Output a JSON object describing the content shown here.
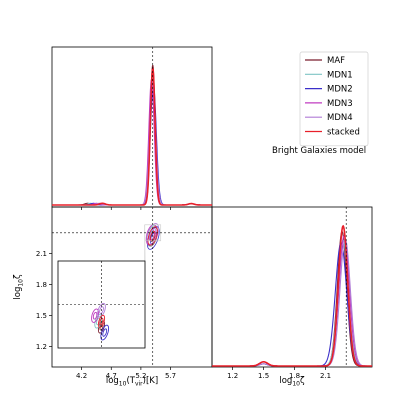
{
  "chart_data": {
    "type": "corner",
    "model_label": "Bright Galaxies model",
    "truth": {
      "log10_Tvir": 5.4,
      "log10_zeta": 2.3
    },
    "series": [
      {
        "name": "MAF",
        "color": "#7b1f2e",
        "mean": [
          5.4,
          2.26
        ],
        "sigma": [
          0.04,
          0.045
        ],
        "rho": 0.5,
        "peak_tvir": 1.0,
        "peak_zeta": 0.96
      },
      {
        "name": "MDN1",
        "color": "#7fc4c4",
        "mean": [
          5.39,
          2.27
        ],
        "sigma": [
          0.045,
          0.05
        ],
        "rho": 0.45,
        "peak_tvir": 0.92,
        "peak_zeta": 0.9
      },
      {
        "name": "MDN2",
        "color": "#3b2fc9",
        "mean": [
          5.41,
          2.25
        ],
        "sigma": [
          0.05,
          0.055
        ],
        "rho": 0.55,
        "peak_tvir": 0.86,
        "peak_zeta": 0.88
      },
      {
        "name": "MDN3",
        "color": "#c03cc0",
        "mean": [
          5.38,
          2.28
        ],
        "sigma": [
          0.045,
          0.05
        ],
        "rho": 0.4,
        "peak_tvir": 0.9,
        "peak_zeta": 0.93
      },
      {
        "name": "MDN4",
        "color": "#b07cd6",
        "mean": [
          5.4,
          2.29
        ],
        "sigma": [
          0.05,
          0.05
        ],
        "rho": 0.5,
        "peak_tvir": 0.88,
        "peak_zeta": 0.91
      },
      {
        "name": "stacked",
        "color": "#e8202a",
        "mean": [
          5.4,
          2.27
        ],
        "sigma": [
          0.04,
          0.045
        ],
        "rho": 0.5,
        "peak_tvir": 0.98,
        "peak_zeta": 1.0
      }
    ],
    "panels": {
      "tvir_marginal": {
        "xlim": [
          3.7,
          6.4
        ]
      },
      "joint": {
        "xlim": [
          3.7,
          6.4
        ],
        "ylim": [
          1.0,
          2.55
        ],
        "xticks": [
          "4.2",
          "4.7",
          "5.2",
          "5.7"
        ],
        "yticks": [
          "1.2",
          "1.5",
          "1.8",
          "2.1"
        ],
        "xlabel_main": "log",
        "xlabel_sub": "10",
        "xlabel_open": "(T",
        "xlabel_tsub": "vir",
        "xlabel_close": ")[K]",
        "ylabel_main": "log",
        "ylabel_sub": "10",
        "ylabel_sym": "ζ"
      },
      "zeta_marginal": {
        "xlim": [
          1.0,
          2.55
        ],
        "xticks": [
          "1.2",
          "1.5",
          "1.8",
          "2.1"
        ],
        "xlabel_main": "log",
        "xlabel_sub": "10",
        "xlabel_sym": "ζ"
      },
      "inset": {
        "zoom": 10
      }
    },
    "legend_position": "top-right",
    "grid": false
  }
}
